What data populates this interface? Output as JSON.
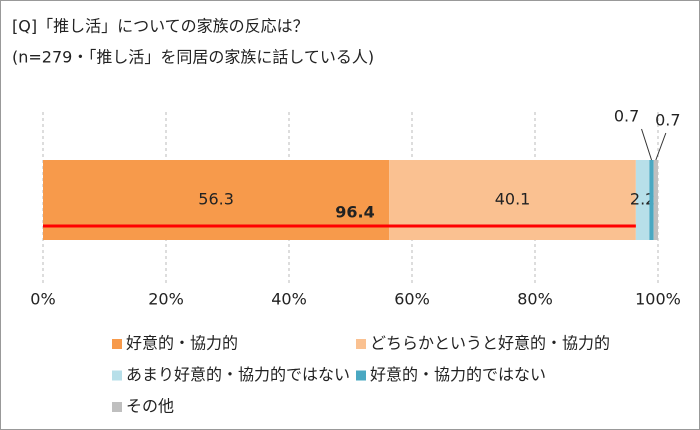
{
  "chart_data": {
    "type": "stacked-bar-horizontal",
    "title": "[Q]「推し活」についての家族の反応は？",
    "subtitle": "(n=279・「推し活」を同居の家族に話している人)",
    "series": [
      {
        "name": "好意的・協力的",
        "color": "#f79a4b",
        "values": [
          56.3
        ]
      },
      {
        "name": "どちらかというと好意的・協力的",
        "color": "#fac191",
        "values": [
          40.1
        ]
      },
      {
        "name": "あまり好意的・協力的ではない",
        "color": "#b7dfe9",
        "values": [
          2.2
        ]
      },
      {
        "name": "好意的・協力的ではない",
        "color": "#4aa8c2",
        "values": [
          0.7
        ]
      },
      {
        "name": "その他",
        "color": "#bfbfbf",
        "values": [
          0.7
        ]
      }
    ],
    "xlim": [
      0,
      100
    ],
    "xticks": [
      {
        "value": 0,
        "label": "0%"
      },
      {
        "value": 20,
        "label": "20%"
      },
      {
        "value": 40,
        "label": "40%"
      },
      {
        "value": 60,
        "label": "60%"
      },
      {
        "value": 80,
        "label": "80%"
      },
      {
        "value": 100,
        "label": "100%"
      }
    ],
    "grid": true,
    "annotation_value": 96.4,
    "annotation_color": "#ff0000"
  }
}
